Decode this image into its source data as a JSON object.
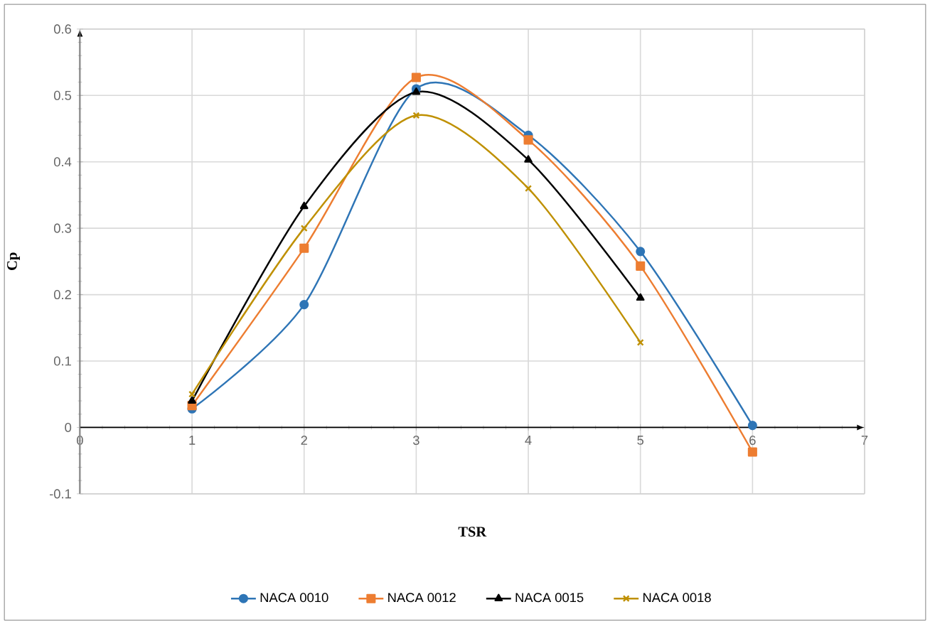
{
  "chart_data": {
    "type": "line",
    "xlabel": "TSR",
    "ylabel": "Cp",
    "x": [
      1,
      2,
      3,
      4,
      5,
      6
    ],
    "series": [
      {
        "name": "NACA 0010",
        "color": "#2e75b6",
        "marker": "circle",
        "values": [
          0.028,
          0.185,
          0.51,
          0.44,
          0.265,
          0.003
        ]
      },
      {
        "name": "NACA 0012",
        "color": "#ed7d31",
        "marker": "square",
        "values": [
          0.033,
          0.27,
          0.527,
          0.433,
          0.243,
          -0.037
        ]
      },
      {
        "name": "NACA 0015",
        "color": "#000000",
        "marker": "triangle",
        "values": [
          0.04,
          0.333,
          0.505,
          0.403,
          0.195,
          null
        ]
      },
      {
        "name": "NACA 0018",
        "color": "#bf9000",
        "marker": "cross",
        "values": [
          0.05,
          0.3,
          0.47,
          0.36,
          0.128,
          null
        ]
      }
    ],
    "xlim": [
      0,
      7
    ],
    "ylim": [
      -0.1,
      0.6
    ],
    "xticks": [
      0,
      1,
      2,
      3,
      4,
      5,
      6,
      7
    ],
    "yticks": [
      -0.1,
      0,
      0.1,
      0.2,
      0.3,
      0.4,
      0.5,
      0.6
    ],
    "grid": true,
    "legend": "bottom",
    "line_style": "solid"
  }
}
